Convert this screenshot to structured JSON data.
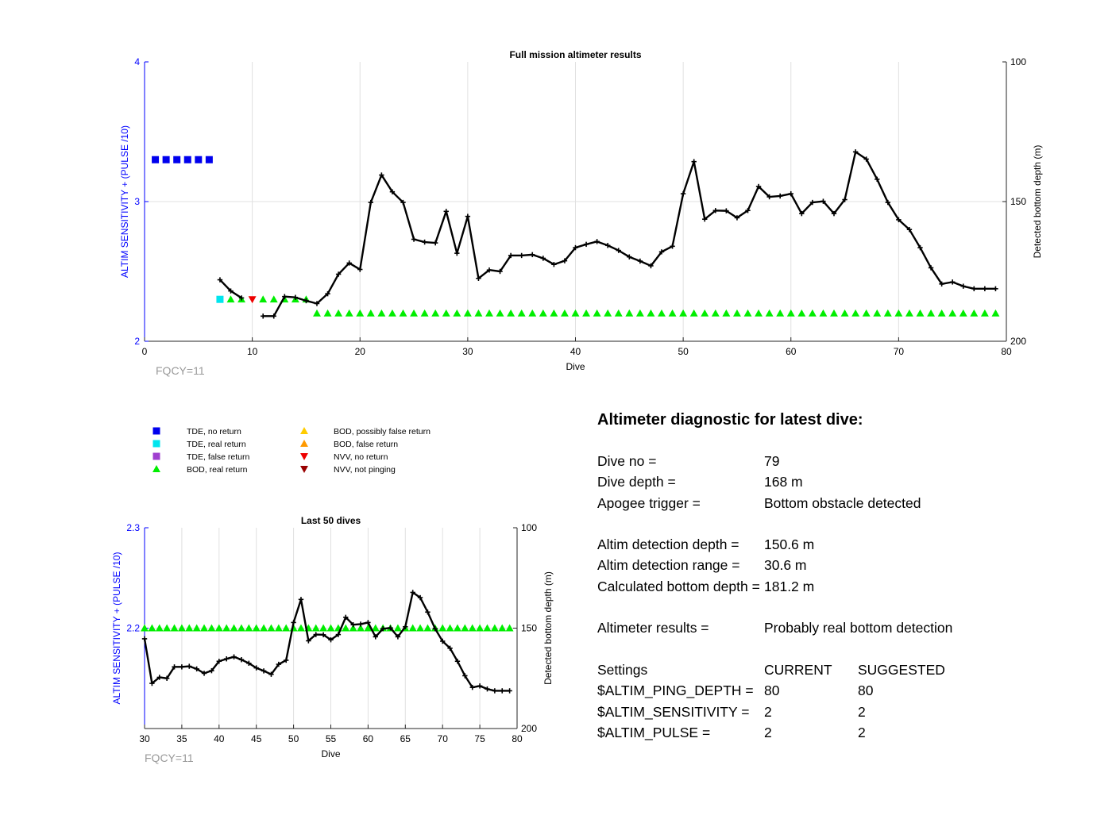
{
  "colors": {
    "left_axis": "#0000ff",
    "line": "#000000",
    "bod_real": "#00ee00",
    "tde_no_return": "#0000ee",
    "tde_real": "#00e5ee",
    "tde_false": "#a040d0",
    "bod_possibly_false": "#ffcc00",
    "bod_false": "#ff9900",
    "nvv_no_return": "#ee0000",
    "nvv_not_pinging": "#990000",
    "grid": "#e0e0e0",
    "fqcy": "#999999"
  },
  "legend": [
    {
      "label": "TDE, no return",
      "marker": "square",
      "color": "#0000ee"
    },
    {
      "label": "TDE, real return",
      "marker": "square",
      "color": "#00e5ee"
    },
    {
      "label": "TDE, false return",
      "marker": "square",
      "color": "#a040d0"
    },
    {
      "label": "BOD, real return",
      "marker": "triangle-up",
      "color": "#00ee00"
    },
    {
      "label": "BOD, possibly false return",
      "marker": "triangle-up",
      "color": "#ffcc00"
    },
    {
      "label": "BOD, false return",
      "marker": "triangle-up",
      "color": "#ff9900"
    },
    {
      "label": "NVV, no return",
      "marker": "triangle-down",
      "color": "#ee0000"
    },
    {
      "label": "NVV, not pinging",
      "marker": "triangle-down",
      "color": "#990000"
    }
  ],
  "chart_data": [
    {
      "type": "line",
      "title": "Full mission altimeter results",
      "xlabel": "Dive",
      "ylabel": "ALTIM SENSITIVITY + (PULSE /10)",
      "y2label": "Detected bottom depth (m)",
      "note": "FQCY=11",
      "xlim": [
        0,
        80
      ],
      "ylim": [
        2,
        4
      ],
      "y2lim": [
        100,
        200
      ],
      "y2_reversed": true,
      "grid": true,
      "xticks": [
        0,
        10,
        20,
        30,
        40,
        50,
        60,
        70,
        80
      ],
      "yticks": [
        2,
        3,
        4
      ],
      "y2ticks": [
        100,
        150,
        200
      ],
      "marker_series": [
        {
          "name": "TDE, no return",
          "marker": "square",
          "color": "#0000ee",
          "y": 3.3,
          "x": [
            1,
            2,
            3,
            4,
            5,
            6
          ]
        },
        {
          "name": "TDE, real return",
          "marker": "square",
          "color": "#00e5ee",
          "y": 2.3,
          "x": [
            7
          ]
        },
        {
          "name": "BOD, real return",
          "marker": "triangle-up",
          "color": "#00ee00",
          "y": 2.3,
          "x": [
            8,
            9,
            11,
            12,
            13,
            14,
            15
          ]
        },
        {
          "name": "NVV, no return",
          "marker": "triangle-down",
          "color": "#ee0000",
          "y": 2.3,
          "x": [
            10
          ]
        },
        {
          "name": "BOD, real return",
          "marker": "triangle-up",
          "color": "#00ee00",
          "y": 2.2,
          "x": [
            16,
            17,
            18,
            19,
            20,
            21,
            22,
            23,
            24,
            25,
            26,
            27,
            28,
            29,
            30,
            31,
            32,
            33,
            34,
            35,
            36,
            37,
            38,
            39,
            40,
            41,
            42,
            43,
            44,
            45,
            46,
            47,
            48,
            49,
            50,
            51,
            52,
            53,
            54,
            55,
            56,
            57,
            58,
            59,
            60,
            61,
            62,
            63,
            64,
            65,
            66,
            67,
            68,
            69,
            70,
            71,
            72,
            73,
            74,
            75,
            76,
            77,
            78,
            79
          ]
        }
      ],
      "depth_series": [
        {
          "x": [
            7,
            8,
            9
          ],
          "depth": [
            178,
            182,
            184.5
          ]
        },
        {
          "x": [
            11,
            12,
            13,
            14,
            15,
            16,
            17,
            18,
            19,
            20,
            21,
            22,
            23,
            24,
            25,
            26,
            27,
            28,
            29,
            30,
            31,
            32,
            33,
            34,
            35,
            36,
            37,
            38,
            39,
            40,
            41,
            42,
            43,
            44,
            45,
            46,
            47,
            48,
            49,
            50,
            51,
            52,
            53,
            54,
            55,
            56,
            57,
            58,
            59,
            60,
            61,
            62,
            63,
            64,
            65,
            66,
            67,
            68,
            69,
            70,
            71,
            72,
            73,
            74,
            75,
            76,
            77,
            78,
            79
          ],
          "depth": [
            191,
            191,
            184,
            184.3,
            185.5,
            186.5,
            183,
            176,
            172,
            174.3,
            150.3,
            140.5,
            146.5,
            150.3,
            163.5,
            164.5,
            164.8,
            153.5,
            168.5,
            155.3,
            177.5,
            174.5,
            175,
            169.3,
            169.3,
            169,
            170.3,
            172.5,
            171.2,
            166.5,
            165.3,
            164.3,
            165.7,
            167.5,
            169.8,
            171.3,
            173,
            168,
            166,
            147.2,
            135.7,
            156.3,
            153.2,
            153.3,
            155.8,
            153.2,
            144.6,
            148.3,
            148,
            147.2,
            154.3,
            150.3,
            149.9,
            154.3,
            149.3,
            132.2,
            134.8,
            142,
            150.3,
            156.5,
            160,
            166.5,
            173.7,
            179.5,
            178.8,
            180.3,
            181.2,
            181.2,
            181.2
          ]
        }
      ]
    },
    {
      "type": "line",
      "title": "Last 50 dives",
      "xlabel": "Dive",
      "ylabel": "ALTIM SENSITIVITY + (PULSE /10)",
      "y2label": "Detected bottom depth (m)",
      "note": "FQCY=11",
      "xlim": [
        30,
        80
      ],
      "ylim": [
        2.1,
        2.3
      ],
      "y2lim": [
        100,
        200
      ],
      "y2_reversed": true,
      "grid": true,
      "xticks": [
        30,
        35,
        40,
        45,
        50,
        55,
        60,
        65,
        70,
        75,
        80
      ],
      "yticks": [
        2.2,
        2.3
      ],
      "y2ticks": [
        100,
        150,
        200
      ],
      "marker_series": [
        {
          "name": "BOD, real return",
          "marker": "triangle-up",
          "color": "#00ee00",
          "y": 2.2,
          "x": [
            30,
            31,
            32,
            33,
            34,
            35,
            36,
            37,
            38,
            39,
            40,
            41,
            42,
            43,
            44,
            45,
            46,
            47,
            48,
            49,
            50,
            51,
            52,
            53,
            54,
            55,
            56,
            57,
            58,
            59,
            60,
            61,
            62,
            63,
            64,
            65,
            66,
            67,
            68,
            69,
            70,
            71,
            72,
            73,
            74,
            75,
            76,
            77,
            78,
            79
          ]
        }
      ],
      "depth_series": [
        {
          "x": [
            30,
            31,
            32,
            33,
            34,
            35,
            36,
            37,
            38,
            39,
            40,
            41,
            42,
            43,
            44,
            45,
            46,
            47,
            48,
            49,
            50,
            51,
            52,
            53,
            54,
            55,
            56,
            57,
            58,
            59,
            60,
            61,
            62,
            63,
            64,
            65,
            66,
            67,
            68,
            69,
            70,
            71,
            72,
            73,
            74,
            75,
            76,
            77,
            78,
            79
          ],
          "depth": [
            155.3,
            177.5,
            174.5,
            175,
            169.3,
            169.3,
            169,
            170.3,
            172.5,
            171.2,
            166.5,
            165.3,
            164.3,
            165.7,
            167.5,
            169.8,
            171.3,
            173,
            168,
            166,
            147.2,
            135.7,
            156.3,
            153.2,
            153.3,
            155.8,
            153.2,
            144.6,
            148.3,
            148,
            147.2,
            154.3,
            150.3,
            149.9,
            154.3,
            149.3,
            132.2,
            134.8,
            142,
            150.3,
            156.5,
            160,
            166.5,
            173.7,
            179.5,
            178.8,
            180.3,
            181.2,
            181.2,
            181.2
          ]
        }
      ]
    }
  ],
  "diagnostic": {
    "title": "Altimeter diagnostic for latest dive:",
    "dive_no_label": "Dive no =",
    "dive_no": "79",
    "dive_depth_label": "Dive depth =",
    "dive_depth": "168 m",
    "apogee_label": "Apogee trigger =",
    "apogee": "Bottom obstacle detected",
    "altim_det_depth_label": "Altim detection depth =",
    "altim_det_depth": "150.6 m",
    "altim_det_range_label": "Altim detection range =",
    "altim_det_range": "30.6 m",
    "calc_bottom_label": "Calculated bottom depth =",
    "calc_bottom": "181.2 m",
    "results_label": "Altimeter results =",
    "results": "Probably real bottom detection",
    "settings_label": "Settings",
    "current_label": "CURRENT",
    "suggested_label": "SUGGESTED",
    "ping_depth_label": "$ALTIM_PING_DEPTH =",
    "ping_depth_current": "80",
    "ping_depth_suggested": "80",
    "sensitivity_label": "$ALTIM_SENSITIVITY =",
    "sensitivity_current": "2",
    "sensitivity_suggested": "2",
    "pulse_label": "$ALTIM_PULSE =",
    "pulse_current": "2",
    "pulse_suggested": "2"
  }
}
